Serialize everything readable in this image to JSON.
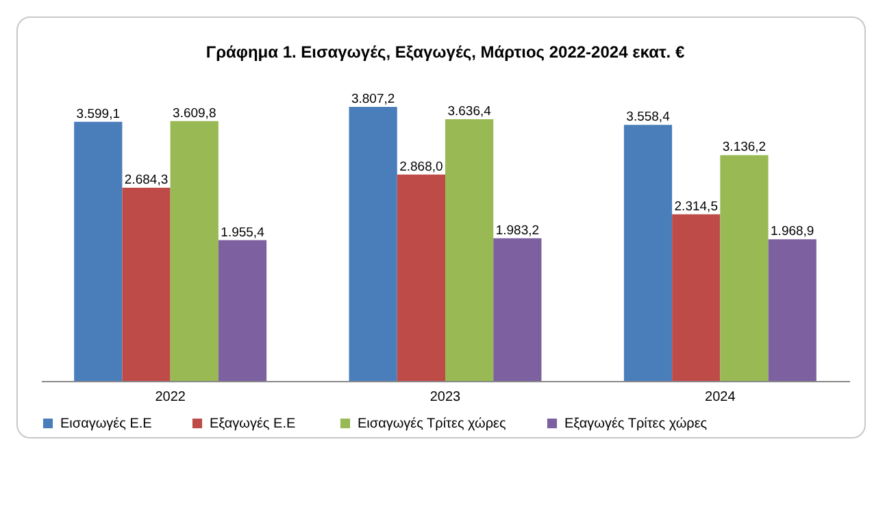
{
  "chart_data": {
    "type": "bar",
    "title": "Γράφημα 1. Εισαγωγές, Εξαγωγές, Μάρτιος 2022-2024 εκατ. €",
    "categories": [
      "2022",
      "2023",
      "2024"
    ],
    "series": [
      {
        "name": "Εισαγωγές Ε.Ε",
        "color": "#4a7ebb",
        "values": [
          3599.1,
          3807.2,
          3558.4
        ],
        "value_labels": [
          "3.599,1",
          "3.807,2",
          "3.558,4"
        ]
      },
      {
        "name": "Εξαγωγές  Ε.Ε",
        "color": "#be4b48",
        "values": [
          2684.3,
          2868.0,
          2314.5
        ],
        "value_labels": [
          "2.684,3",
          "2.868,0",
          "2.314,5"
        ]
      },
      {
        "name": "Εισαγωγές Τρίτες χώρες",
        "color": "#98b954",
        "values": [
          3609.8,
          3636.4,
          3136.2
        ],
        "value_labels": [
          "3.609,8",
          "3.636,4",
          "3.136,2"
        ]
      },
      {
        "name": "Εξαγωγές Τρίτες χώρες",
        "color": "#7d60a0",
        "values": [
          1955.4,
          1983.2,
          1968.9
        ],
        "value_labels": [
          "1.955,4",
          "1.983,2",
          "1.968,9"
        ]
      }
    ],
    "legend": "bottom"
  }
}
